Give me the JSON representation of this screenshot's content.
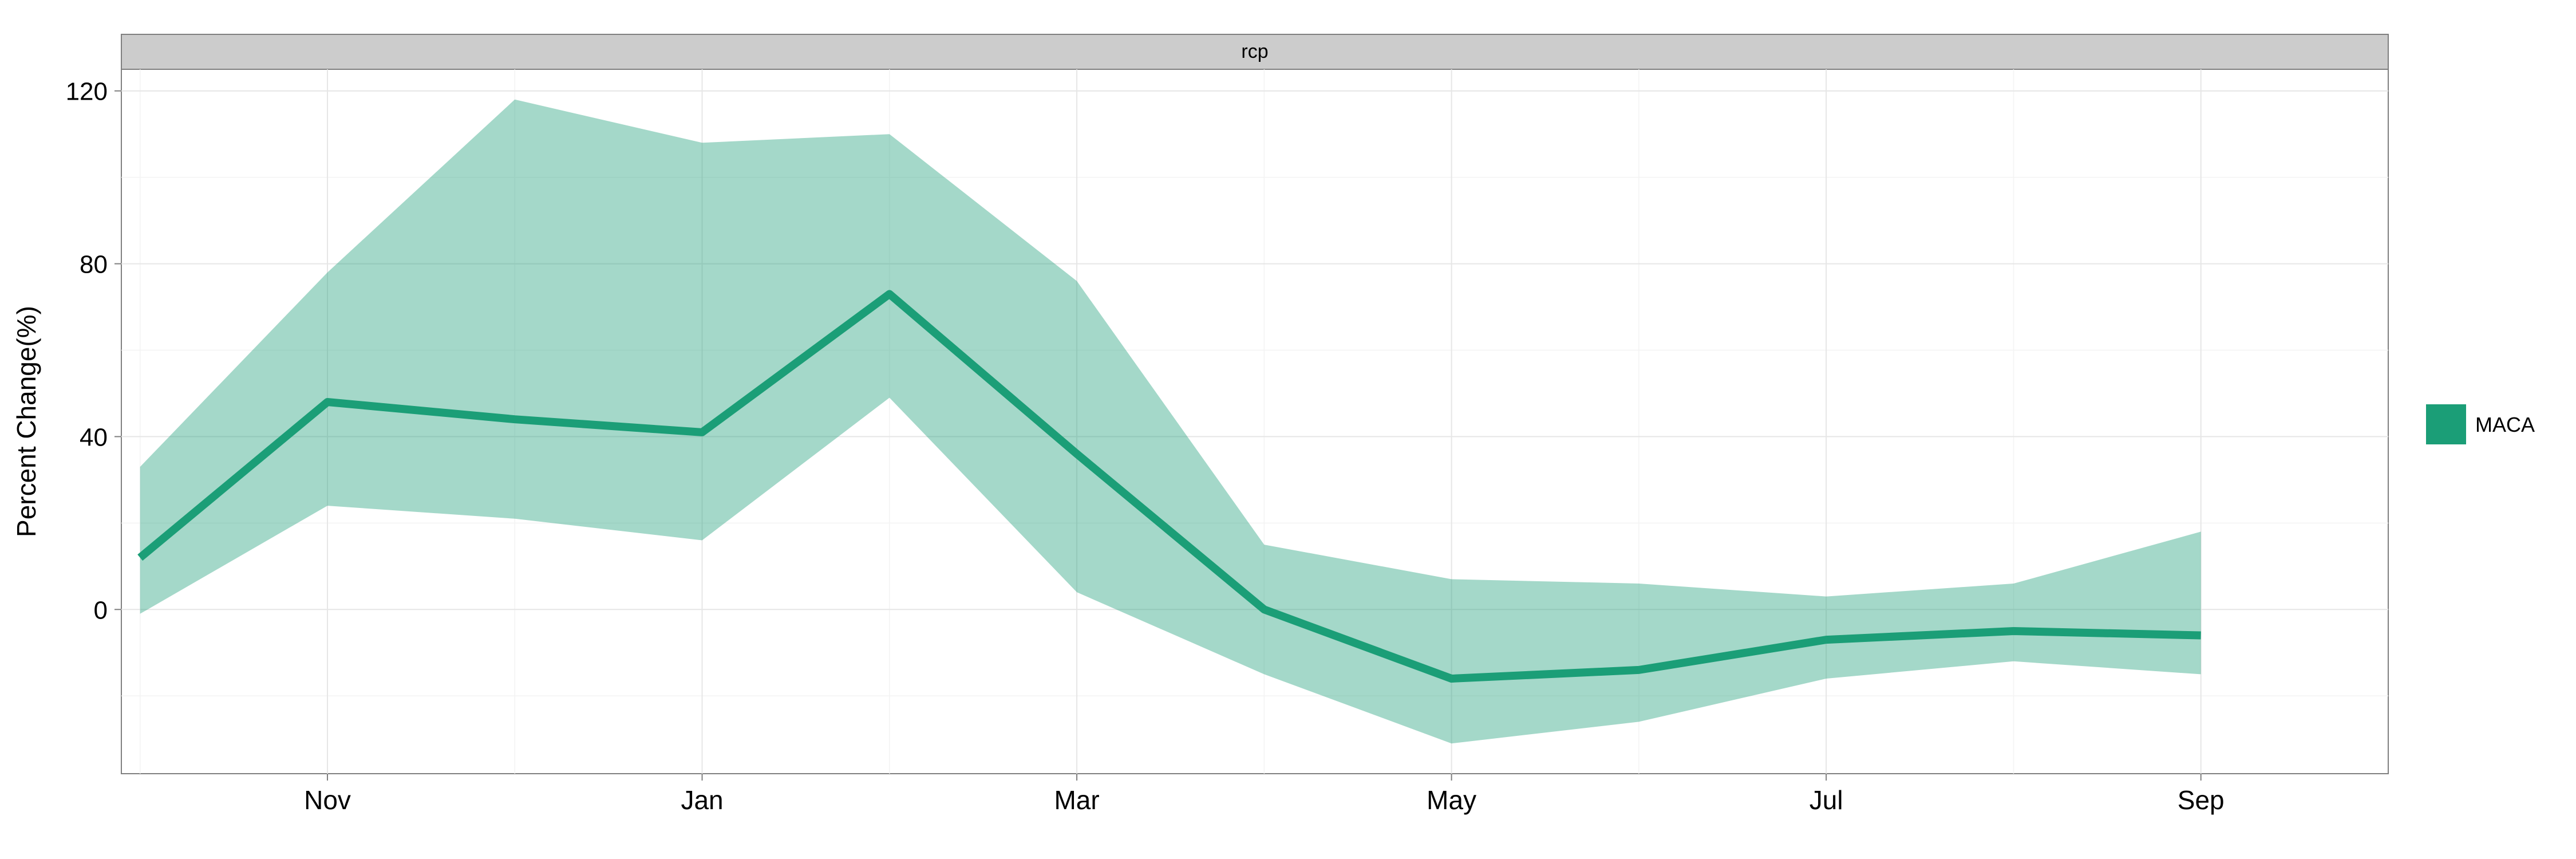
{
  "chart_data": {
    "type": "line",
    "facet_label": "rcp",
    "ylabel": "Percent Change(%)",
    "xlabel": "",
    "x_tick_labels": [
      "Nov",
      "Jan",
      "Mar",
      "May",
      "Jul",
      "Sep"
    ],
    "x_tick_positions": [
      1,
      3,
      5,
      7,
      9,
      11
    ],
    "x_range": [
      -0.1,
      12.0
    ],
    "y_ticks": [
      0,
      40,
      80,
      120
    ],
    "ylim": [
      -38,
      125
    ],
    "grid": true,
    "legend_position": "right",
    "series": [
      {
        "name": "MACA",
        "color": "#1b9e77",
        "ribbon_color": "#1b9e77",
        "x": [
          0,
          1,
          2,
          3,
          4,
          5,
          6,
          7,
          8,
          9,
          10,
          11
        ],
        "values": [
          12,
          48,
          44,
          41,
          73,
          36,
          0,
          -16,
          -14,
          -7,
          -5,
          -6
        ],
        "upper": [
          33,
          78,
          118,
          108,
          110,
          76,
          15,
          7,
          6,
          3,
          6,
          18
        ],
        "lower": [
          -1,
          24,
          21,
          16,
          49,
          4,
          -15,
          -31,
          -26,
          -16,
          -12,
          -15
        ]
      }
    ]
  }
}
